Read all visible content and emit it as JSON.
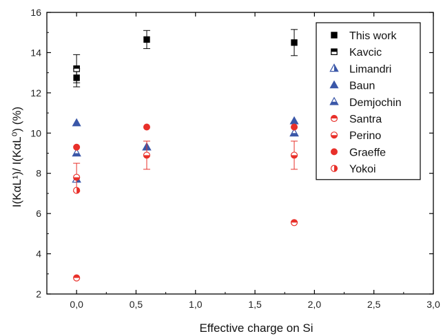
{
  "chart_data": {
    "type": "scatter",
    "xlabel": "Effective charge on Si",
    "ylabel": "I(KαL¹)/ I(KαL⁰) (%)",
    "xlim": [
      -0.25,
      3.0
    ],
    "ylim": [
      2,
      16
    ],
    "x_ticks": [
      "0,0",
      "0,5",
      "1,0",
      "1,5",
      "2,0",
      "2,5",
      "3,0"
    ],
    "x_tick_values": [
      0.0,
      0.5,
      1.0,
      1.5,
      2.0,
      2.5,
      3.0
    ],
    "y_ticks": [
      "2",
      "4",
      "6",
      "8",
      "10",
      "12",
      "14",
      "16"
    ],
    "y_tick_values": [
      2,
      4,
      6,
      8,
      10,
      12,
      14,
      16
    ],
    "legend_position": "top-right",
    "series": [
      {
        "name": "This work",
        "marker": "square-filled",
        "color": "#000000",
        "points": [
          {
            "x": 0.0,
            "y": 12.75,
            "err": 0.45
          },
          {
            "x": 0.59,
            "y": 14.65,
            "err": 0.45
          },
          {
            "x": 1.83,
            "y": 14.5,
            "err": 0.65
          }
        ]
      },
      {
        "name": "Kavcic",
        "marker": "square-half-top",
        "color": "#000000",
        "points": [
          {
            "x": 0.0,
            "y": 13.2,
            "err": 0.7
          }
        ]
      },
      {
        "name": "Limandri",
        "marker": "triangle-half-right",
        "color": "#3a57a8",
        "points": [
          {
            "x": 0.0,
            "y": 7.7
          },
          {
            "x": 0.59,
            "y": 9.3
          },
          {
            "x": 1.83,
            "y": 10.0
          }
        ]
      },
      {
        "name": "Baun",
        "marker": "triangle-filled",
        "color": "#3a57a8",
        "points": [
          {
            "x": 0.0,
            "y": 10.5
          },
          {
            "x": 0.59,
            "y": 9.3
          },
          {
            "x": 1.83,
            "y": 10.6
          }
        ]
      },
      {
        "name": "Demjochin",
        "marker": "triangle-half-bottom",
        "color": "#3a57a8",
        "points": [
          {
            "x": 0.0,
            "y": 9.0
          },
          {
            "x": 1.83,
            "y": 10.0
          }
        ]
      },
      {
        "name": "Santra",
        "marker": "circle-half-top",
        "color": "#e8302a",
        "points": [
          {
            "x": 0.0,
            "y": 2.8
          },
          {
            "x": 1.83,
            "y": 5.55
          }
        ]
      },
      {
        "name": "Perino",
        "marker": "circle-half-bottom",
        "color": "#e8302a",
        "points": [
          {
            "x": 0.0,
            "y": 7.8,
            "err": 0.7
          },
          {
            "x": 0.59,
            "y": 8.9,
            "err": 0.7
          },
          {
            "x": 1.83,
            "y": 8.9,
            "err": 0.7
          }
        ]
      },
      {
        "name": "Graeffe",
        "marker": "circle-filled",
        "color": "#e8302a",
        "points": [
          {
            "x": 0.0,
            "y": 9.3
          },
          {
            "x": 0.59,
            "y": 10.3
          },
          {
            "x": 1.83,
            "y": 10.3
          }
        ]
      },
      {
        "name": "Yokoi",
        "marker": "circle-half-right",
        "color": "#e8302a",
        "points": [
          {
            "x": 0.0,
            "y": 7.15
          }
        ]
      }
    ]
  }
}
